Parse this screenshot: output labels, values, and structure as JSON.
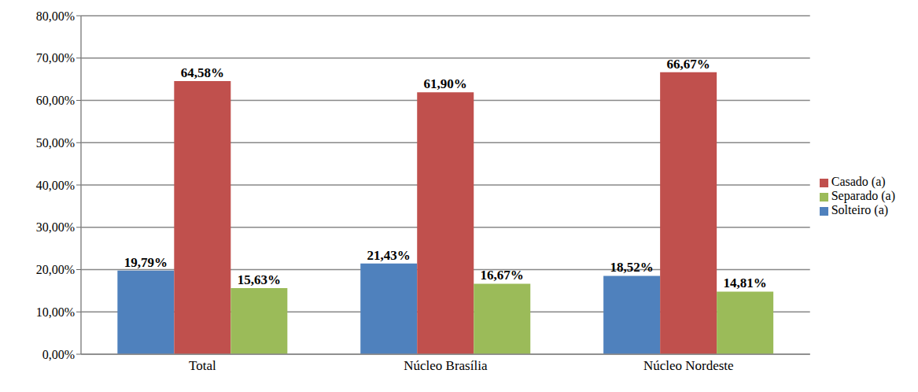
{
  "chart_data": {
    "type": "bar",
    "categories": [
      "Total",
      "Núcleo Brasília",
      "Núcleo Nordeste"
    ],
    "series": [
      {
        "name": "Solteiro (a)",
        "color": "#4F81BD",
        "values": [
          19.79,
          21.43,
          18.52
        ],
        "value_labels": [
          "19,79%",
          "21,43%",
          "18,52%"
        ]
      },
      {
        "name": "Casado (a)",
        "color": "#C0504D",
        "values": [
          64.58,
          61.9,
          66.67
        ],
        "value_labels": [
          "64,58%",
          "61,90%",
          "66,67%"
        ]
      },
      {
        "name": "Separado (a)",
        "color": "#9BBB59",
        "values": [
          15.63,
          16.67,
          14.81
        ],
        "value_labels": [
          "15,63%",
          "16,67%",
          "14,81%"
        ]
      }
    ],
    "ylim": [
      0,
      80
    ],
    "yticks": [
      {
        "value": 0,
        "label": "0,00%"
      },
      {
        "value": 10,
        "label": "10,00%"
      },
      {
        "value": 20,
        "label": "20,00%"
      },
      {
        "value": 30,
        "label": "30,00%"
      },
      {
        "value": 40,
        "label": "40,00%"
      },
      {
        "value": 50,
        "label": "50,00%"
      },
      {
        "value": 60,
        "label": "60,00%"
      },
      {
        "value": 70,
        "label": "70,00%"
      },
      {
        "value": 80,
        "label": "80,00%"
      }
    ],
    "grid": true,
    "legend": "right",
    "data_labels": true
  }
}
